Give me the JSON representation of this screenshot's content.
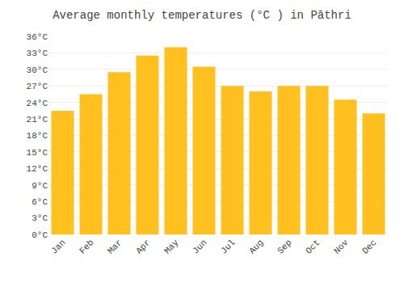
{
  "chart_data": {
    "type": "bar",
    "title": "Average monthly temperatures (°C ) in Pāthri",
    "categories": [
      "Jan",
      "Feb",
      "Mar",
      "Apr",
      "May",
      "Jun",
      "Jul",
      "Aug",
      "Sep",
      "Oct",
      "Nov",
      "Dec"
    ],
    "values": [
      22.5,
      25.5,
      29.5,
      32.5,
      34.0,
      30.5,
      27.0,
      26.0,
      27.0,
      27.0,
      24.5,
      22.0
    ],
    "color": "#FFC020",
    "ylim": [
      0,
      36
    ],
    "yticks": [
      {
        "value": 0,
        "label": "0°C"
      },
      {
        "value": 3,
        "label": "3°C"
      },
      {
        "value": 6,
        "label": "6°C"
      },
      {
        "value": 9,
        "label": "9°C"
      },
      {
        "value": 12,
        "label": "12°C"
      },
      {
        "value": 15,
        "label": "15°C"
      },
      {
        "value": 18,
        "label": "18°C"
      },
      {
        "value": 21,
        "label": "21°C"
      },
      {
        "value": 24,
        "label": "24°C"
      },
      {
        "value": 27,
        "label": "27°C"
      },
      {
        "value": 30,
        "label": "30°C"
      },
      {
        "value": 33,
        "label": "33°C"
      },
      {
        "value": 36,
        "label": "36°C"
      }
    ],
    "grid": true
  }
}
